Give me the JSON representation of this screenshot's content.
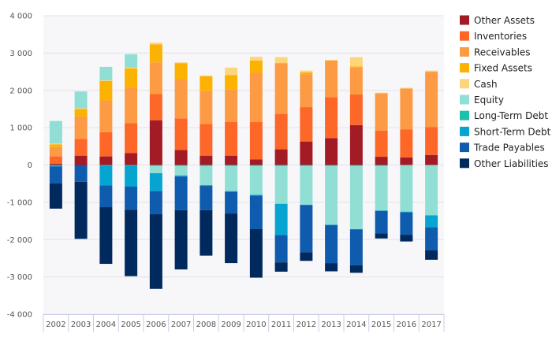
{
  "chart_data": {
    "type": "bar",
    "stacked": true,
    "categories": [
      "2002",
      "2003",
      "2004",
      "2005",
      "2006",
      "2007",
      "2008",
      "2009",
      "2010",
      "2011",
      "2012",
      "2013",
      "2014",
      "2015",
      "2016",
      "2017"
    ],
    "ylim": [
      -4000,
      4000
    ],
    "yticks": [
      4000,
      3000,
      2000,
      1000,
      0,
      -1000,
      -2000,
      -3000,
      -4000
    ],
    "ytick_labels": [
      "4 000",
      "3 000",
      "2 000",
      "1 000",
      "0",
      "-1 000",
      "-2 000",
      "-3 000",
      "-4 000"
    ],
    "grid": true,
    "legend_position": "right",
    "series": [
      {
        "name": "Other Assets",
        "color": "#a31b24",
        "values": [
          30,
          250,
          230,
          320,
          1200,
          400,
          250,
          250,
          150,
          420,
          630,
          720,
          1070,
          220,
          200,
          270
        ]
      },
      {
        "name": "Inventories",
        "color": "#fd6727",
        "values": [
          200,
          450,
          650,
          800,
          700,
          850,
          850,
          900,
          1000,
          950,
          920,
          1100,
          820,
          700,
          750,
          750
        ]
      },
      {
        "name": "Receivables",
        "color": "#fd9b45",
        "values": [
          250,
          600,
          850,
          950,
          850,
          1050,
          880,
          880,
          1320,
          1350,
          880,
          980,
          720,
          1000,
          1100,
          1480
        ]
      },
      {
        "name": "Fixed Assets",
        "color": "#fbb201",
        "values": [
          70,
          200,
          520,
          520,
          480,
          430,
          400,
          380,
          330,
          20,
          50,
          0,
          30,
          0,
          0,
          0
        ]
      },
      {
        "name": "Cash",
        "color": "#fdd57c",
        "values": [
          30,
          20,
          20,
          20,
          50,
          20,
          20,
          200,
          100,
          150,
          50,
          20,
          250,
          20,
          20,
          30
        ]
      },
      {
        "name": "Equity",
        "color": "#91ded5",
        "values": [
          600,
          450,
          360,
          360,
          0,
          0,
          0,
          0,
          0,
          0,
          0,
          0,
          0,
          0,
          0,
          0
        ]
      },
      {
        "name": "Long-Term Debt",
        "color": "#1fbfae",
        "values": [
          -20,
          0,
          -20,
          -20,
          -20,
          -20,
          -20,
          -20,
          -20,
          -20,
          -20,
          -20,
          -20,
          -20,
          0,
          0
        ]
      },
      {
        "name": "Equity",
        "color": "#91ded5",
        "values": [
          0,
          0,
          0,
          0,
          -200,
          -260,
          -520,
          -680,
          -780,
          -1020,
          -1050,
          -1580,
          -1700,
          -1200,
          -1250,
          -1350
        ]
      },
      {
        "name": "Short-Term Debt",
        "color": "#06a4d1",
        "values": [
          -20,
          0,
          -530,
          -560,
          -480,
          -30,
          -20,
          -20,
          -20,
          -840,
          0,
          -10,
          -10,
          -10,
          -20,
          -320
        ]
      },
      {
        "name": "Trade Payables",
        "color": "#0f5bad",
        "values": [
          -450,
          -450,
          -580,
          -620,
          -620,
          -900,
          -650,
          -580,
          -900,
          -730,
          -1270,
          -1020,
          -960,
          -600,
          -600,
          -620
        ]
      },
      {
        "name": "Other Liabilities",
        "color": "#00295e",
        "values": [
          -680,
          -1530,
          -1520,
          -1780,
          -2000,
          -1590,
          -1220,
          -1330,
          -1300,
          -250,
          -230,
          -220,
          -200,
          -140,
          -180,
          -250
        ]
      }
    ],
    "legend": [
      {
        "name": "Other Assets",
        "color": "#a31b24"
      },
      {
        "name": "Inventories",
        "color": "#fd6727"
      },
      {
        "name": "Receivables",
        "color": "#fd9b45"
      },
      {
        "name": "Fixed Assets",
        "color": "#fbb201"
      },
      {
        "name": "Cash",
        "color": "#fdd57c"
      },
      {
        "name": "Equity",
        "color": "#91ded5"
      },
      {
        "name": "Long-Term Debt",
        "color": "#1fbfae"
      },
      {
        "name": "Short-Term Debt",
        "color": "#06a4d1"
      },
      {
        "name": "Trade Payables",
        "color": "#0f5bad"
      },
      {
        "name": "Other Liabilities",
        "color": "#00295e"
      }
    ]
  }
}
